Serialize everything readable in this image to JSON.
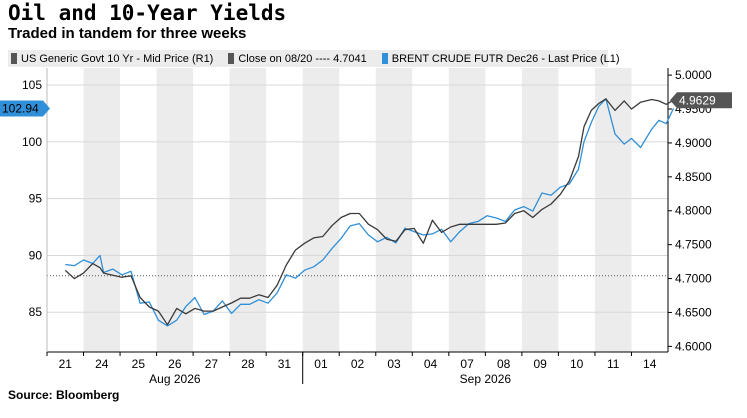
{
  "title": "Oil and 10-Year Yields",
  "subtitle": "Traded in tandem for three weeks",
  "source": "Source: Bloomberg",
  "legend": {
    "items": [
      {
        "label": "US Generic Govt 10 Yr - Mid Price (R1)",
        "color": "#555555"
      },
      {
        "label": "Close on 08/20 ---- 4.7041",
        "color": "#555555"
      },
      {
        "label": "BRENT CRUDE FUTR Dec26 - Last Price (L1)",
        "color": "#2f8fd8"
      }
    ]
  },
  "colors": {
    "yield": "#3a3a3a",
    "brent": "#2f8fd8",
    "shade": "#ececec"
  },
  "chart_data": {
    "type": "line",
    "x_tick_labels": [
      "21",
      "24",
      "25",
      "26",
      "27",
      "28",
      "31",
      "01",
      "02",
      "03",
      "04",
      "07",
      "08",
      "09",
      "10",
      "11",
      "14"
    ],
    "month_labels": [
      "Aug 2026",
      "Sep 2026"
    ],
    "left_axis": {
      "ticks": [
        85,
        90,
        95,
        100,
        105
      ],
      "range": [
        81.5,
        106.5
      ]
    },
    "right_axis": {
      "ticks": [
        "4.6000",
        "4.6500",
        "4.7000",
        "4.7500",
        "4.8000",
        "4.8500",
        "4.9000",
        "4.9500",
        "5.0000"
      ],
      "range": [
        4.5917,
        5.0105
      ]
    },
    "reference_line": {
      "label": "Close on 08/20",
      "value": 4.7041
    },
    "last_value_labels": {
      "left": "102.94",
      "right": "4.9629"
    },
    "series": [
      {
        "name": "BRENT CRUDE FUTR Dec26 - Last Price (L1)",
        "axis": "left",
        "points": [
          [
            0.0,
            89.2
          ],
          [
            0.25,
            89.1
          ],
          [
            0.5,
            89.6
          ],
          [
            0.75,
            89.3
          ],
          [
            0.95,
            90.0
          ],
          [
            1.05,
            88.5
          ],
          [
            1.3,
            88.8
          ],
          [
            1.55,
            88.3
          ],
          [
            1.8,
            88.6
          ],
          [
            2.05,
            85.8
          ],
          [
            2.3,
            85.9
          ],
          [
            2.55,
            84.3
          ],
          [
            2.8,
            83.8
          ],
          [
            3.05,
            84.3
          ],
          [
            3.3,
            85.5
          ],
          [
            3.55,
            86.3
          ],
          [
            3.8,
            84.8
          ],
          [
            4.05,
            85.1
          ],
          [
            4.3,
            86.0
          ],
          [
            4.55,
            84.9
          ],
          [
            4.8,
            85.7
          ],
          [
            5.05,
            85.7
          ],
          [
            5.3,
            86.1
          ],
          [
            5.55,
            85.8
          ],
          [
            5.8,
            86.7
          ],
          [
            6.05,
            88.3
          ],
          [
            6.3,
            88.0
          ],
          [
            6.55,
            88.7
          ],
          [
            6.8,
            89.0
          ],
          [
            7.05,
            89.6
          ],
          [
            7.3,
            90.6
          ],
          [
            7.55,
            91.5
          ],
          [
            7.8,
            92.6
          ],
          [
            8.05,
            92.8
          ],
          [
            8.3,
            91.8
          ],
          [
            8.55,
            91.2
          ],
          [
            8.8,
            91.6
          ],
          [
            9.05,
            91.1
          ],
          [
            9.3,
            92.4
          ],
          [
            9.55,
            92.1
          ],
          [
            9.8,
            91.8
          ],
          [
            10.05,
            91.9
          ],
          [
            10.3,
            92.3
          ],
          [
            10.55,
            91.2
          ],
          [
            10.8,
            92.1
          ],
          [
            11.05,
            92.8
          ],
          [
            11.3,
            93.0
          ],
          [
            11.55,
            93.5
          ],
          [
            11.8,
            93.3
          ],
          [
            12.05,
            93.0
          ],
          [
            12.3,
            94.0
          ],
          [
            12.55,
            94.3
          ],
          [
            12.8,
            93.9
          ],
          [
            13.05,
            95.5
          ],
          [
            13.3,
            95.3
          ],
          [
            13.55,
            96.0
          ],
          [
            13.8,
            96.3
          ],
          [
            14.05,
            97.6
          ],
          [
            14.2,
            100.0
          ],
          [
            14.4,
            101.7
          ],
          [
            14.6,
            103.1
          ],
          [
            14.8,
            103.8
          ],
          [
            15.05,
            100.7
          ],
          [
            15.3,
            99.8
          ],
          [
            15.5,
            100.3
          ],
          [
            15.75,
            99.5
          ],
          [
            16.05,
            101.1
          ],
          [
            16.25,
            101.9
          ],
          [
            16.45,
            101.6
          ],
          [
            16.65,
            102.94
          ]
        ]
      },
      {
        "name": "US Generic Govt 10 Yr - Mid Price (R1)",
        "axis": "right",
        "points": [
          [
            0.0,
            4.712
          ],
          [
            0.25,
            4.7
          ],
          [
            0.5,
            4.708
          ],
          [
            0.75,
            4.722
          ],
          [
            0.95,
            4.716
          ],
          [
            1.05,
            4.708
          ],
          [
            1.3,
            4.705
          ],
          [
            1.55,
            4.702
          ],
          [
            1.8,
            4.704
          ],
          [
            2.05,
            4.672
          ],
          [
            2.3,
            4.658
          ],
          [
            2.55,
            4.652
          ],
          [
            2.8,
            4.632
          ],
          [
            3.05,
            4.656
          ],
          [
            3.3,
            4.648
          ],
          [
            3.55,
            4.656
          ],
          [
            3.8,
            4.652
          ],
          [
            4.05,
            4.652
          ],
          [
            4.3,
            4.658
          ],
          [
            4.55,
            4.664
          ],
          [
            4.8,
            4.671
          ],
          [
            5.05,
            4.671
          ],
          [
            5.3,
            4.676
          ],
          [
            5.55,
            4.672
          ],
          [
            5.8,
            4.69
          ],
          [
            6.05,
            4.72
          ],
          [
            6.3,
            4.742
          ],
          [
            6.55,
            4.752
          ],
          [
            6.8,
            4.76
          ],
          [
            7.05,
            4.762
          ],
          [
            7.3,
            4.778
          ],
          [
            7.55,
            4.79
          ],
          [
            7.8,
            4.796
          ],
          [
            8.05,
            4.796
          ],
          [
            8.3,
            4.78
          ],
          [
            8.55,
            4.772
          ],
          [
            8.8,
            4.758
          ],
          [
            9.05,
            4.755
          ],
          [
            9.3,
            4.772
          ],
          [
            9.55,
            4.774
          ],
          [
            9.8,
            4.752
          ],
          [
            10.05,
            4.786
          ],
          [
            10.3,
            4.768
          ],
          [
            10.55,
            4.776
          ],
          [
            10.8,
            4.78
          ],
          [
            11.05,
            4.78
          ],
          [
            11.3,
            4.78
          ],
          [
            11.55,
            4.78
          ],
          [
            11.8,
            4.78
          ],
          [
            12.05,
            4.782
          ],
          [
            12.3,
            4.796
          ],
          [
            12.55,
            4.8
          ],
          [
            12.8,
            4.79
          ],
          [
            13.05,
            4.802
          ],
          [
            13.3,
            4.81
          ],
          [
            13.55,
            4.824
          ],
          [
            13.8,
            4.844
          ],
          [
            14.05,
            4.88
          ],
          [
            14.2,
            4.924
          ],
          [
            14.4,
            4.948
          ],
          [
            14.6,
            4.958
          ],
          [
            14.8,
            4.965
          ],
          [
            15.05,
            4.948
          ],
          [
            15.3,
            4.962
          ],
          [
            15.5,
            4.95
          ],
          [
            15.75,
            4.96
          ],
          [
            16.05,
            4.964
          ],
          [
            16.25,
            4.962
          ],
          [
            16.45,
            4.957
          ],
          [
            16.65,
            4.9629
          ]
        ]
      }
    ]
  }
}
